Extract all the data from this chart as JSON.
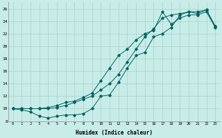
{
  "xlabel": "Humidex (Indice chaleur)",
  "bg_color": "#c8ede8",
  "grid_color": "#a8cfc8",
  "line_color": "#006060",
  "xlim": [
    -0.5,
    23.5
  ],
  "ylim": [
    8,
    27
  ],
  "yticks": [
    8,
    10,
    12,
    14,
    16,
    18,
    20,
    22,
    24,
    26
  ],
  "xticks": [
    0,
    1,
    2,
    3,
    4,
    5,
    6,
    7,
    8,
    9,
    10,
    11,
    12,
    13,
    14,
    15,
    16,
    17,
    18,
    19,
    20,
    21,
    22,
    23
  ],
  "series1_x": [
    0,
    1,
    2,
    3,
    4,
    5,
    6,
    7,
    8,
    9,
    10,
    11,
    12,
    13,
    14,
    15,
    16,
    17,
    18,
    19,
    20,
    21,
    22,
    23
  ],
  "series1_y": [
    10,
    9.8,
    9.5,
    8.8,
    8.5,
    8.8,
    9.0,
    9.0,
    9.2,
    10.0,
    12.0,
    12.2,
    14.2,
    16.5,
    18.5,
    19.0,
    21.5,
    22.0,
    23.0,
    25.0,
    25.5,
    25.2,
    25.8,
    23.2
  ],
  "series2_x": [
    0,
    1,
    2,
    3,
    4,
    5,
    6,
    7,
    8,
    9,
    10,
    11,
    12,
    13,
    14,
    15,
    16,
    17,
    18,
    19,
    20,
    21,
    22,
    23
  ],
  "series2_y": [
    10,
    10,
    10,
    10.0,
    10.2,
    10.5,
    11.0,
    11.2,
    11.8,
    12.5,
    14.5,
    16.5,
    18.5,
    19.5,
    21.0,
    22.0,
    22.5,
    25.5,
    23.5,
    24.5,
    25.0,
    25.0,
    25.5,
    23.0
  ],
  "series3_x": [
    0,
    1,
    2,
    3,
    4,
    5,
    6,
    7,
    8,
    9,
    10,
    11,
    12,
    13,
    14,
    15,
    16,
    17,
    18,
    19,
    20,
    21,
    22,
    23
  ],
  "series3_y": [
    10,
    10,
    10,
    10,
    10,
    10.2,
    10.5,
    11.0,
    11.5,
    12.0,
    13.0,
    14.0,
    15.5,
    17.5,
    19.5,
    21.5,
    22.8,
    24.5,
    25.0,
    25.2,
    25.5,
    25.5,
    25.8,
    23.2
  ]
}
